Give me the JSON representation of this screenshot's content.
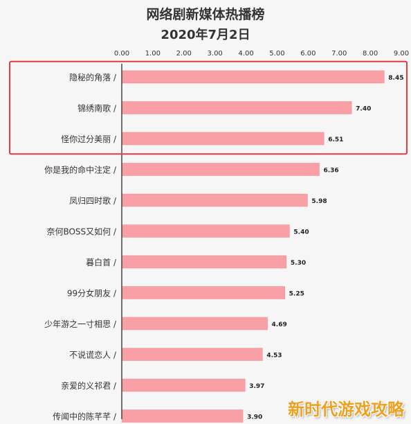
{
  "chart_data": {
    "type": "bar",
    "orientation": "horizontal",
    "title": "网络剧新媒体热播榜",
    "subtitle": "2020年7月2日",
    "xlim": [
      0,
      9
    ],
    "x_ticks": [
      "0.00",
      "1.00",
      "2.00",
      "3.00",
      "4.00",
      "5.00",
      "6.00",
      "7.00",
      "8.00",
      "9.00"
    ],
    "categories": [
      "隐秘的角落 /",
      "锦绣南歌 /",
      "怪你过分美丽 /",
      "你是我的命中注定 /",
      "凤归四时歌 /",
      "奈何BOSS又如何 /",
      "暮白首 /",
      "99分女朋友 /",
      "少年游之一寸相思 /",
      "不说谎恋人 /",
      "亲爱的义祁君 /",
      "传闻中的陈芊芊 /"
    ],
    "values": [
      8.45,
      7.4,
      6.51,
      6.36,
      5.98,
      5.4,
      5.3,
      5.25,
      4.69,
      4.53,
      3.97,
      3.9
    ],
    "value_labels": [
      "8.45",
      "7.40",
      "6.51",
      "6.36",
      "5.98",
      "5.40",
      "5.30",
      "5.25",
      "4.69",
      "4.53",
      "3.97",
      "3.90"
    ],
    "highlighted_top": 3,
    "legend": "none",
    "grid": false
  },
  "colors": {
    "bar": "#f9a0a6",
    "bar_stroke": "#f08890",
    "highlight_box": "#e33b44",
    "axis": "#444444",
    "text": "#333333",
    "watermark": "#f0a020"
  },
  "watermark": {
    "text": "新时代游戏攻略"
  }
}
